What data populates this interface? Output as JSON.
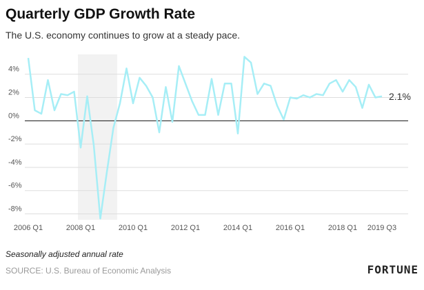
{
  "chart_data": {
    "type": "line",
    "title": "Quarterly GDP Growth Rate",
    "subtitle": "The U.S. economy continues to grow at a steady pace.",
    "note": "Seasonally adjusted annual rate",
    "source": "SOURCE: U.S. Bureau of Economic Analysis",
    "brand": "FORTUNE",
    "categories": [
      "2006 Q1",
      null,
      null,
      null,
      null,
      null,
      null,
      null,
      "2008 Q1",
      null,
      null,
      null,
      null,
      null,
      null,
      null,
      "2010 Q1",
      null,
      null,
      null,
      null,
      null,
      null,
      null,
      "2012 Q1",
      null,
      null,
      null,
      null,
      null,
      null,
      null,
      "2014 Q1",
      null,
      null,
      null,
      null,
      null,
      null,
      null,
      "2016 Q1",
      null,
      null,
      null,
      null,
      null,
      null,
      null,
      "2018 Q1",
      null,
      null,
      null,
      null,
      null,
      "2019 Q3"
    ],
    "values": [
      5.4,
      0.9,
      0.6,
      3.5,
      0.9,
      2.3,
      2.2,
      2.5,
      -2.3,
      2.1,
      -2.1,
      -8.4,
      -4.4,
      -0.6,
      1.5,
      4.5,
      1.5,
      3.7,
      3.0,
      2.0,
      -1.0,
      2.9,
      -0.1,
      4.7,
      3.2,
      1.7,
      0.5,
      0.5,
      3.6,
      0.5,
      3.2,
      3.2,
      -1.1,
      5.5,
      5.0,
      2.3,
      3.2,
      3.0,
      1.3,
      0.1,
      2.0,
      1.9,
      2.2,
      2.0,
      2.3,
      2.2,
      3.2,
      3.5,
      2.5,
      3.5,
      2.9,
      1.1,
      3.1,
      2.0,
      2.1
    ],
    "value_labels": [
      null,
      null,
      null,
      null,
      null,
      null,
      null,
      null,
      null,
      null,
      null,
      null,
      null,
      null,
      null,
      null,
      null,
      null,
      null,
      null,
      null,
      null,
      null,
      null,
      null,
      null,
      null,
      null,
      null,
      null,
      null,
      null,
      null,
      null,
      null,
      null,
      null,
      null,
      null,
      null,
      null,
      null,
      null,
      null,
      null,
      null,
      null,
      null,
      null,
      null,
      null,
      null,
      null,
      null,
      "2.1%"
    ],
    "color": "#a6eef6",
    "ylim": [
      -8.5,
      5.7
    ],
    "yticks": [
      {
        "value": -8,
        "label": "-8%"
      },
      {
        "value": -6,
        "label": "-6%"
      },
      {
        "value": -4,
        "label": "-4%"
      },
      {
        "value": -2,
        "label": "-2%"
      },
      {
        "value": 0,
        "label": "0%"
      },
      {
        "value": 2,
        "label": "2%"
      },
      {
        "value": 4,
        "label": "4%"
      }
    ],
    "grid": true
  }
}
